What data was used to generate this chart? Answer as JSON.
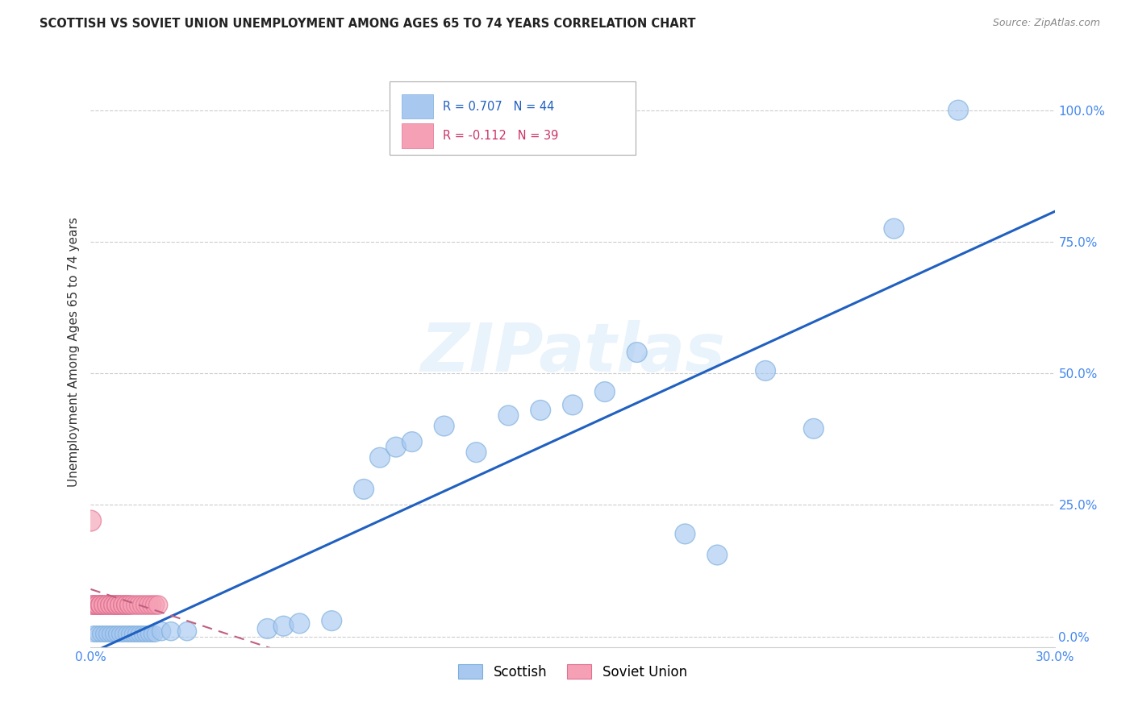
{
  "title": "SCOTTISH VS SOVIET UNION UNEMPLOYMENT AMONG AGES 65 TO 74 YEARS CORRELATION CHART",
  "source": "Source: ZipAtlas.com",
  "ylabel": "Unemployment Among Ages 65 to 74 years",
  "xlim": [
    0.0,
    0.3
  ],
  "ylim": [
    -0.02,
    1.1
  ],
  "yticks": [
    0.0,
    0.25,
    0.5,
    0.75,
    1.0
  ],
  "ytick_labels": [
    "0.0%",
    "25.0%",
    "50.0%",
    "75.0%",
    "100.0%"
  ],
  "xticks": [
    0.0,
    0.3
  ],
  "xtick_labels": [
    "0.0%",
    "30.0%"
  ],
  "scottish_color": "#a8c8f0",
  "scottish_edge": "#7aaedd",
  "soviet_color": "#f5a0b5",
  "soviet_edge": "#e07090",
  "line_color_scottish": "#2060c0",
  "line_color_soviet": "#c06080",
  "legend_scottish_R": "0.707",
  "legend_scottish_N": "44",
  "legend_soviet_R": "-0.112",
  "legend_soviet_N": "39",
  "scottish_x": [
    0.001,
    0.002,
    0.003,
    0.004,
    0.005,
    0.006,
    0.007,
    0.008,
    0.009,
    0.01,
    0.011,
    0.012,
    0.013,
    0.014,
    0.015,
    0.016,
    0.017,
    0.018,
    0.019,
    0.02,
    0.022,
    0.025,
    0.03,
    0.055,
    0.06,
    0.065,
    0.075,
    0.085,
    0.09,
    0.095,
    0.1,
    0.11,
    0.12,
    0.13,
    0.14,
    0.15,
    0.16,
    0.17,
    0.185,
    0.195,
    0.21,
    0.225,
    0.25,
    0.27
  ],
  "scottish_y": [
    0.005,
    0.005,
    0.005,
    0.005,
    0.005,
    0.005,
    0.005,
    0.005,
    0.005,
    0.005,
    0.005,
    0.005,
    0.005,
    0.005,
    0.005,
    0.005,
    0.005,
    0.005,
    0.005,
    0.005,
    0.01,
    0.01,
    0.01,
    0.015,
    0.02,
    0.025,
    0.03,
    0.28,
    0.34,
    0.36,
    0.37,
    0.4,
    0.35,
    0.42,
    0.43,
    0.44,
    0.465,
    0.54,
    0.195,
    0.155,
    0.505,
    0.395,
    0.775,
    1.0
  ],
  "scottish_sizes": [
    200,
    200,
    200,
    200,
    200,
    200,
    200,
    200,
    200,
    200,
    200,
    200,
    200,
    200,
    200,
    200,
    200,
    200,
    200,
    200,
    280,
    280,
    280,
    320,
    320,
    320,
    320,
    320,
    320,
    320,
    320,
    320,
    320,
    320,
    320,
    320,
    320,
    320,
    320,
    320,
    320,
    320,
    320,
    320
  ],
  "soviet_x": [
    0.0,
    0.0,
    0.001,
    0.001,
    0.001,
    0.002,
    0.002,
    0.003,
    0.003,
    0.003,
    0.003,
    0.004,
    0.004,
    0.005,
    0.005,
    0.006,
    0.006,
    0.007,
    0.007,
    0.008,
    0.008,
    0.008,
    0.009,
    0.009,
    0.01,
    0.01,
    0.011,
    0.011,
    0.012,
    0.012,
    0.013,
    0.014,
    0.015,
    0.016,
    0.017,
    0.018,
    0.019,
    0.02,
    0.021
  ],
  "soviet_y": [
    0.22,
    0.06,
    0.06,
    0.06,
    0.06,
    0.06,
    0.06,
    0.06,
    0.06,
    0.06,
    0.06,
    0.06,
    0.06,
    0.06,
    0.06,
    0.06,
    0.06,
    0.06,
    0.06,
    0.06,
    0.06,
    0.06,
    0.06,
    0.06,
    0.06,
    0.06,
    0.06,
    0.06,
    0.06,
    0.06,
    0.06,
    0.06,
    0.06,
    0.06,
    0.06,
    0.06,
    0.06,
    0.06,
    0.06
  ],
  "soviet_sizes": [
    350,
    280,
    280,
    280,
    280,
    280,
    280,
    280,
    280,
    280,
    280,
    280,
    280,
    280,
    280,
    280,
    280,
    280,
    280,
    280,
    280,
    280,
    280,
    280,
    280,
    280,
    280,
    280,
    280,
    280,
    280,
    280,
    280,
    280,
    280,
    280,
    280,
    280,
    280
  ],
  "background_color": "#ffffff",
  "grid_color": "#cccccc"
}
